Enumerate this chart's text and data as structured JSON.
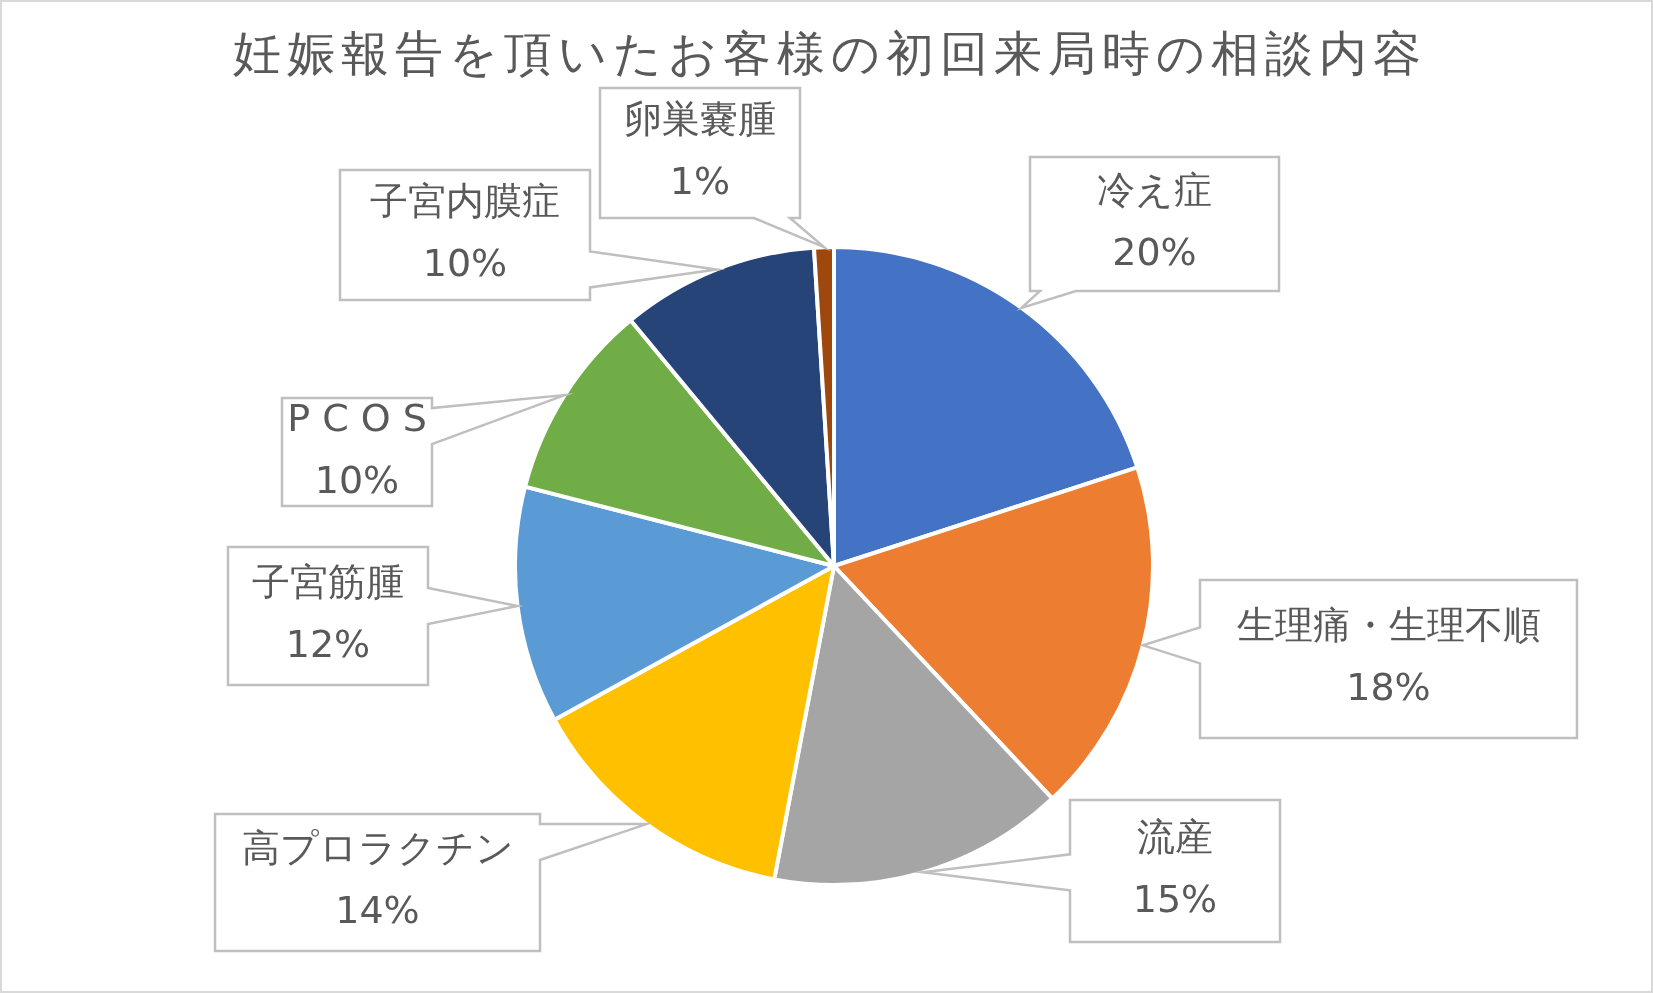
{
  "chart_data": {
    "type": "pie",
    "title": "妊娠報告を頂いたお客様の初回来局時の相談内容",
    "categories": [
      "冷え症",
      "生理痛・生理不順",
      "流産",
      "高プロラクチン",
      "子宮筋腫",
      "P C O S",
      "子宮内膜症",
      "卵巣嚢腫"
    ],
    "values": [
      20,
      18,
      15,
      14,
      12,
      10,
      10,
      1
    ],
    "value_labels": [
      "20%",
      "18%",
      "15%",
      "14%",
      "12%",
      "10%",
      "10%",
      "1%"
    ],
    "colors": [
      "#4472c4",
      "#ed7d31",
      "#a5a5a5",
      "#ffc000",
      "#5b9bd5",
      "#70ad47",
      "#264478",
      "#9e480e"
    ]
  }
}
